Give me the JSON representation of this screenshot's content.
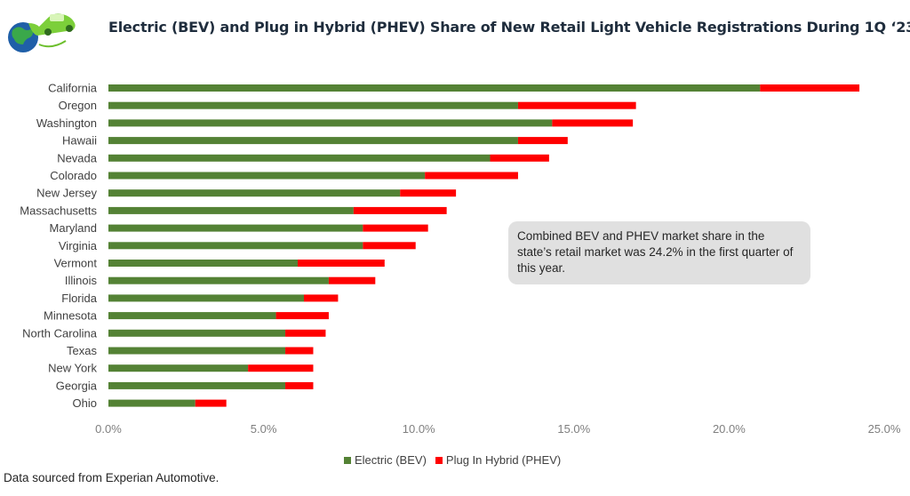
{
  "header": {
    "title": "Electric (BEV) and Plug in Hybrid (PHEV) Share of New Retail Light Vehicle Registrations During 1Q ‘23",
    "logo_icon": "electric-car-globe-icon"
  },
  "callout": {
    "text": "Combined BEV and PHEV market share in the state’s retail market was 24.2% in the first quarter of this year."
  },
  "source_note": "Data sourced from Experian Automotive.",
  "legend": {
    "bev_label": "Electric (BEV)",
    "phev_label": "Plug In Hybrid (PHEV)",
    "placement": "bottom"
  },
  "colors": {
    "bev": "#548235",
    "phev": "#ff0000"
  },
  "chart_data": {
    "type": "bar",
    "orientation": "horizontal",
    "stacked": true,
    "title": "Electric (BEV) and Plug in Hybrid (PHEV) Share of New Retail Light Vehicle Registrations During 1Q ‘23",
    "categories": [
      "California",
      "Oregon",
      "Washington",
      "Hawaii",
      "Nevada",
      "Colorado",
      "New Jersey",
      "Massachusetts",
      "Maryland",
      "Virginia",
      "Vermont",
      "Illinois",
      "Florida",
      "Minnesota",
      "North Carolina",
      "Texas",
      "New York",
      "Georgia",
      "Ohio"
    ],
    "series": [
      {
        "name": "Electric (BEV)",
        "values": [
          21.0,
          13.2,
          14.3,
          13.2,
          12.3,
          10.2,
          9.4,
          7.9,
          8.2,
          8.2,
          6.1,
          7.1,
          6.3,
          5.4,
          5.7,
          5.7,
          4.5,
          5.7,
          2.8
        ]
      },
      {
        "name": "Plug In Hybrid (PHEV)",
        "values": [
          3.2,
          3.8,
          2.6,
          1.6,
          1.9,
          3.0,
          1.8,
          3.0,
          2.1,
          1.7,
          2.8,
          1.5,
          1.1,
          1.7,
          1.3,
          0.9,
          2.1,
          0.9,
          1.0
        ]
      }
    ],
    "xlim": [
      0,
      25
    ],
    "xticks": [
      "0.0%",
      "5.0%",
      "10.0%",
      "15.0%",
      "20.0%",
      "25.0%"
    ],
    "xlabel": "",
    "ylabel": "",
    "grid": false
  }
}
